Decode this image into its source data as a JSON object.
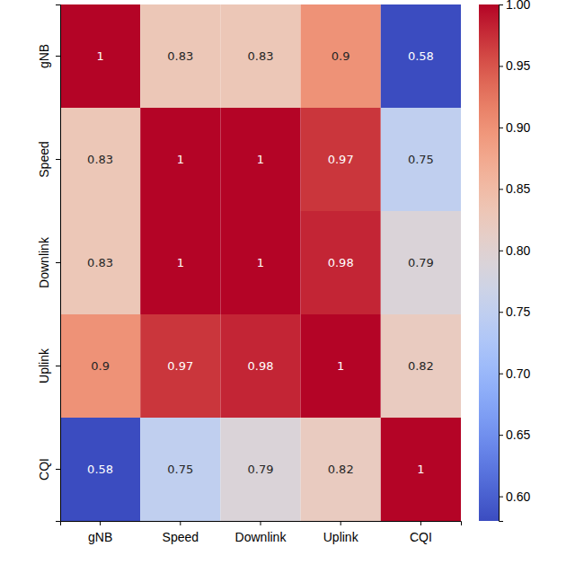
{
  "chart_data": {
    "type": "heatmap",
    "categories": [
      "gNB",
      "Speed",
      "Downlink",
      "Uplink",
      "CQI"
    ],
    "y_categories": [
      "gNB",
      "Speed",
      "Downlink",
      "Uplink",
      "CQI"
    ],
    "values": [
      [
        1,
        0.83,
        0.83,
        0.9,
        0.58
      ],
      [
        0.83,
        1,
        1,
        0.97,
        0.75
      ],
      [
        0.83,
        1,
        1,
        0.98,
        0.79
      ],
      [
        0.9,
        0.97,
        0.98,
        1,
        0.82
      ],
      [
        0.58,
        0.75,
        0.79,
        0.82,
        1
      ]
    ],
    "data_labels": true,
    "colorbar_range": [
      0.58,
      1.0
    ],
    "colorbar_ticks": [
      {
        "value": 0.6,
        "label": "0.60"
      },
      {
        "value": 0.65,
        "label": "0.65"
      },
      {
        "value": 0.7,
        "label": "0.70"
      },
      {
        "value": 0.75,
        "label": "0.75"
      },
      {
        "value": 0.8,
        "label": "0.80"
      },
      {
        "value": 0.85,
        "label": "0.85"
      },
      {
        "value": 0.9,
        "label": "0.90"
      },
      {
        "value": 0.95,
        "label": "0.95"
      },
      {
        "value": 1.0,
        "label": "1.00"
      }
    ]
  }
}
